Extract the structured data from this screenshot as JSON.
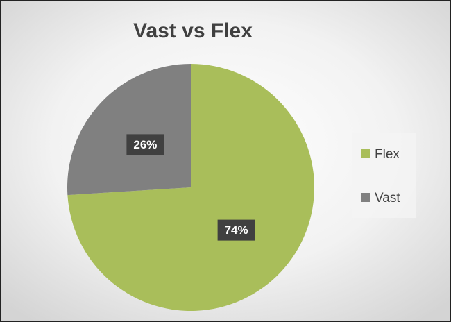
{
  "chart_data": {
    "type": "pie",
    "title": "Vast vs Flex",
    "categories": [
      "Flex",
      "Vast"
    ],
    "values": [
      74,
      26
    ],
    "value_labels": [
      "74%",
      "26%"
    ],
    "colors": [
      "#a9be5a",
      "#808080"
    ],
    "legend": "right"
  }
}
